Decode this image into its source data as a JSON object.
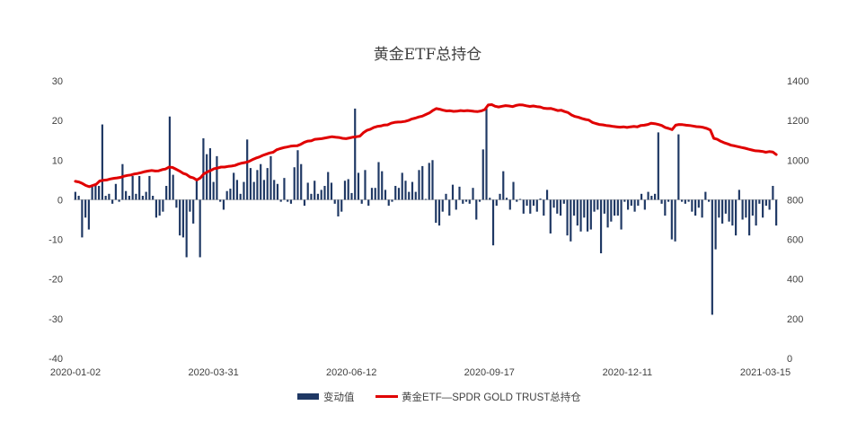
{
  "chart_data": {
    "type": "bar",
    "title": "黄金ETF总持仓",
    "xlabel": "",
    "ylabel": "",
    "x_tick_labels": [
      "2020-01-02",
      "2020-03-31",
      "2020-06-12",
      "2020-09-17",
      "2020-12-11",
      "2021-03-15"
    ],
    "y_left": {
      "ticks": [
        30,
        20,
        10,
        0,
        -10,
        -20,
        -30,
        -40
      ],
      "range": [
        -40,
        30
      ]
    },
    "y_right": {
      "ticks": [
        1400,
        1200,
        1000,
        800,
        600,
        400,
        200,
        0
      ],
      "range": [
        0,
        1400
      ]
    },
    "grid": false,
    "legend_position": "bottom",
    "series": [
      {
        "name": "变动值",
        "type": "bar",
        "axis": "left",
        "color": "#1f3864",
        "values": [
          2,
          1,
          -9.5,
          -4.5,
          -7.5,
          3.5,
          4,
          3.5,
          19,
          1,
          1.5,
          -1,
          4,
          -0.5,
          9,
          2.2,
          1,
          6,
          1.5,
          6,
          1,
          2,
          6,
          1,
          -4.5,
          -4,
          -3,
          3.5,
          21,
          6.3,
          -2,
          -9,
          -9.5,
          -14.5,
          -3,
          -6,
          5.2,
          -14.5,
          15.5,
          11.5,
          13,
          4.5,
          11,
          -0.5,
          -2.5,
          2.2,
          2.8,
          6.8,
          5,
          1.5,
          4.5,
          15.2,
          8,
          4.5,
          7.5,
          9,
          5,
          8,
          11,
          5,
          4,
          -0.5,
          5.5,
          -0.5,
          -1,
          8.2,
          12.5,
          9,
          -1.5,
          4.3,
          1.5,
          4.8,
          1.5,
          2.5,
          3.5,
          7,
          4.3,
          -1,
          -4.2,
          -3,
          4.8,
          5.2,
          1.7,
          23,
          6.8,
          -1,
          7.5,
          -1.5,
          3,
          3,
          9.5,
          7.2,
          2.5,
          -1.5,
          -0.5,
          3.5,
          3,
          6.8,
          4.8,
          2,
          4.5,
          2,
          7.5,
          8.5,
          0.2,
          9.3,
          10,
          -5.8,
          -6.5,
          -3,
          1.5,
          -4,
          3.8,
          -2.5,
          3.3,
          -1,
          -0.5,
          -1,
          3,
          -5,
          -0.5,
          12.7,
          23,
          0.5,
          -11.5,
          -1.5,
          1.5,
          7.2,
          0.5,
          -2.5,
          4.5,
          -0.5,
          0.2,
          -3.5,
          -1.5,
          -3.5,
          -1.5,
          -3,
          0.3,
          -4,
          2.5,
          -8.5,
          -2,
          -3.5,
          -4,
          -1,
          -9,
          -10.5,
          -4,
          -6.5,
          -8,
          -4.5,
          -8,
          -7.5,
          -3,
          -2.5,
          -13.5,
          -3.5,
          -7,
          -5.5,
          -4,
          -4,
          -7.5,
          -0.5,
          -2.5,
          -1.5,
          -3,
          -1.5,
          1.5,
          -2.5,
          2,
          1,
          1.5,
          17,
          -1,
          -4,
          -0.5,
          -10,
          -10.5,
          16.5,
          -0.5,
          -1,
          -0.5,
          -3,
          -4,
          -2,
          -4.5,
          2,
          -0.5,
          -29,
          -12.5,
          -4.5,
          -6,
          -3.5,
          -5.5,
          -6.5,
          -9,
          2.5,
          -5,
          -4.5,
          -9,
          -4,
          -6.5,
          -1,
          -4.5,
          -1.5,
          -2.5,
          3.5,
          -6.5
        ]
      },
      {
        "name": "黄金ETF—SPDR GOLD TRUST总持仓",
        "type": "line",
        "axis": "right",
        "color": "#e00000",
        "values": [
          893,
          890,
          882,
          872,
          866,
          872,
          878,
          895,
          898,
          900,
          905,
          908,
          910,
          913,
          919,
          923,
          925,
          930,
          933,
          937,
          942,
          945,
          948,
          945,
          946,
          952,
          955,
          965,
          963,
          954,
          945,
          934,
          928,
          915,
          910,
          900,
          910,
          930,
          940,
          948,
          957,
          960,
          965,
          965,
          968,
          970,
          973,
          980,
          985,
          988,
          993,
          1002,
          1010,
          1016,
          1024,
          1030,
          1036,
          1040,
          1052,
          1058,
          1063,
          1066,
          1070,
          1072,
          1073,
          1080,
          1090,
          1096,
          1098,
          1105,
          1107,
          1108,
          1112,
          1115,
          1118,
          1116,
          1114,
          1110,
          1108,
          1112,
          1116,
          1118,
          1121,
          1138,
          1150,
          1156,
          1165,
          1170,
          1172,
          1177,
          1178,
          1186,
          1190,
          1192,
          1193,
          1195,
          1200,
          1208,
          1212,
          1218,
          1222,
          1230,
          1238,
          1250,
          1260,
          1257,
          1252,
          1248,
          1249,
          1246,
          1247,
          1250,
          1248,
          1250,
          1248,
          1246,
          1245,
          1248,
          1255,
          1278,
          1280,
          1272,
          1268,
          1272,
          1275,
          1273,
          1270,
          1276,
          1279,
          1278,
          1274,
          1271,
          1273,
          1270,
          1268,
          1262,
          1260,
          1261,
          1256,
          1250,
          1252,
          1245,
          1240,
          1228,
          1220,
          1216,
          1210,
          1205,
          1202,
          1190,
          1185,
          1180,
          1178,
          1175,
          1173,
          1170,
          1168,
          1166,
          1168,
          1165,
          1168,
          1170,
          1168,
          1175,
          1176,
          1180,
          1186,
          1184,
          1180,
          1175,
          1165,
          1160,
          1154,
          1176,
          1180,
          1179,
          1176,
          1175,
          1172,
          1169,
          1168,
          1165,
          1160,
          1152,
          1110,
          1105,
          1095,
          1088,
          1082,
          1075,
          1072,
          1068,
          1064,
          1060,
          1055,
          1051,
          1047,
          1046,
          1044,
          1040,
          1043,
          1041,
          1028
        ]
      }
    ]
  },
  "legend": {
    "bar_label": "变动值",
    "line_label": "黄金ETF—SPDR GOLD TRUST总持仓"
  }
}
